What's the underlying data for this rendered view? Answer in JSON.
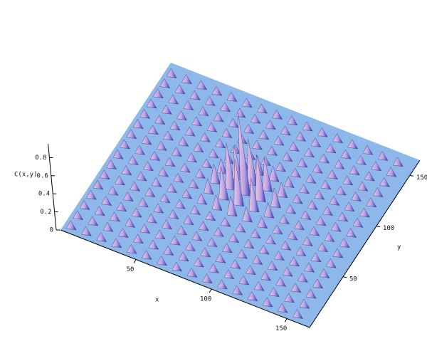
{
  "chart_data": {
    "type": "surface",
    "xlabel": "x",
    "ylabel": "y",
    "zlabel": "C(x,y)",
    "color": "#b9a3e8",
    "floor_color": "#8fb8ea",
    "xlim": [
      0,
      165
    ],
    "ylim": [
      0,
      165
    ],
    "zlim": [
      0,
      0.95
    ],
    "xticks": [
      50,
      100,
      150
    ],
    "yticks": [
      50,
      100,
      150
    ],
    "zticks": [
      0,
      0.2,
      0.4,
      0.6,
      0.8
    ],
    "x": [
      5,
      15,
      25,
      35,
      45,
      55,
      65,
      75,
      85,
      95,
      105,
      115,
      125,
      135,
      145,
      155
    ],
    "y": [
      5,
      15,
      25,
      35,
      45,
      55,
      65,
      75,
      85,
      95,
      105,
      115,
      125,
      135,
      145,
      155
    ],
    "z": [
      [
        0.08,
        0.08,
        0.08,
        0.08,
        0.08,
        0.08,
        0.08,
        0.08,
        0.08,
        0.08,
        0.08,
        0.08,
        0.08,
        0.08,
        0.08,
        0.08
      ],
      [
        0.08,
        0.08,
        0.08,
        0.08,
        0.08,
        0.08,
        0.08,
        0.08,
        0.08,
        0.08,
        0.08,
        0.08,
        0.08,
        0.08,
        0.08,
        0.08
      ],
      [
        0.08,
        0.08,
        0.08,
        0.08,
        0.08,
        0.08,
        0.08,
        0.08,
        0.08,
        0.08,
        0.08,
        0.08,
        0.08,
        0.08,
        0.08,
        0.08
      ],
      [
        0.08,
        0.08,
        0.08,
        0.08,
        0.08,
        0.08,
        0.08,
        0.08,
        0.08,
        0.08,
        0.08,
        0.08,
        0.08,
        0.08,
        0.08,
        0.08
      ],
      [
        0.08,
        0.08,
        0.08,
        0.08,
        0.08,
        0.08,
        0.08,
        0.08,
        0.08,
        0.08,
        0.08,
        0.08,
        0.08,
        0.08,
        0.08,
        0.08
      ],
      [
        0.08,
        0.08,
        0.08,
        0.08,
        0.08,
        0.08,
        0.08,
        0.08,
        0.08,
        0.08,
        0.08,
        0.08,
        0.08,
        0.08,
        0.08,
        0.08
      ],
      [
        0.08,
        0.08,
        0.08,
        0.08,
        0.08,
        0.08,
        0.1,
        0.15,
        0.2,
        0.15,
        0.1,
        0.08,
        0.08,
        0.08,
        0.08,
        0.08
      ],
      [
        0.08,
        0.08,
        0.08,
        0.08,
        0.08,
        0.08,
        0.15,
        0.35,
        0.5,
        0.35,
        0.15,
        0.08,
        0.08,
        0.08,
        0.08,
        0.08
      ],
      [
        0.08,
        0.08,
        0.08,
        0.08,
        0.08,
        0.08,
        0.2,
        0.5,
        0.9,
        0.5,
        0.2,
        0.08,
        0.08,
        0.08,
        0.08,
        0.08
      ],
      [
        0.08,
        0.08,
        0.08,
        0.08,
        0.08,
        0.08,
        0.15,
        0.35,
        0.5,
        0.35,
        0.15,
        0.08,
        0.08,
        0.08,
        0.08,
        0.08
      ],
      [
        0.08,
        0.08,
        0.08,
        0.08,
        0.08,
        0.08,
        0.1,
        0.15,
        0.2,
        0.15,
        0.1,
        0.08,
        0.08,
        0.08,
        0.08,
        0.08
      ],
      [
        0.08,
        0.08,
        0.08,
        0.08,
        0.08,
        0.08,
        0.08,
        0.08,
        0.08,
        0.08,
        0.08,
        0.08,
        0.08,
        0.08,
        0.08,
        0.08
      ],
      [
        0.08,
        0.08,
        0.08,
        0.08,
        0.08,
        0.08,
        0.08,
        0.08,
        0.08,
        0.08,
        0.08,
        0.08,
        0.08,
        0.08,
        0.08,
        0.08
      ],
      [
        0.08,
        0.08,
        0.08,
        0.08,
        0.08,
        0.08,
        0.08,
        0.08,
        0.08,
        0.08,
        0.08,
        0.08,
        0.08,
        0.08,
        0.08,
        0.08
      ],
      [
        0.08,
        0.08,
        0.08,
        0.08,
        0.08,
        0.08,
        0.08,
        0.08,
        0.08,
        0.08,
        0.08,
        0.08,
        0.08,
        0.08,
        0.08,
        0.08
      ],
      [
        0.08,
        0.08,
        0.08,
        0.08,
        0.08,
        0.08,
        0.08,
        0.08,
        0.08,
        0.08,
        0.08,
        0.08,
        0.08,
        0.08,
        0.08,
        0.08
      ]
    ]
  }
}
